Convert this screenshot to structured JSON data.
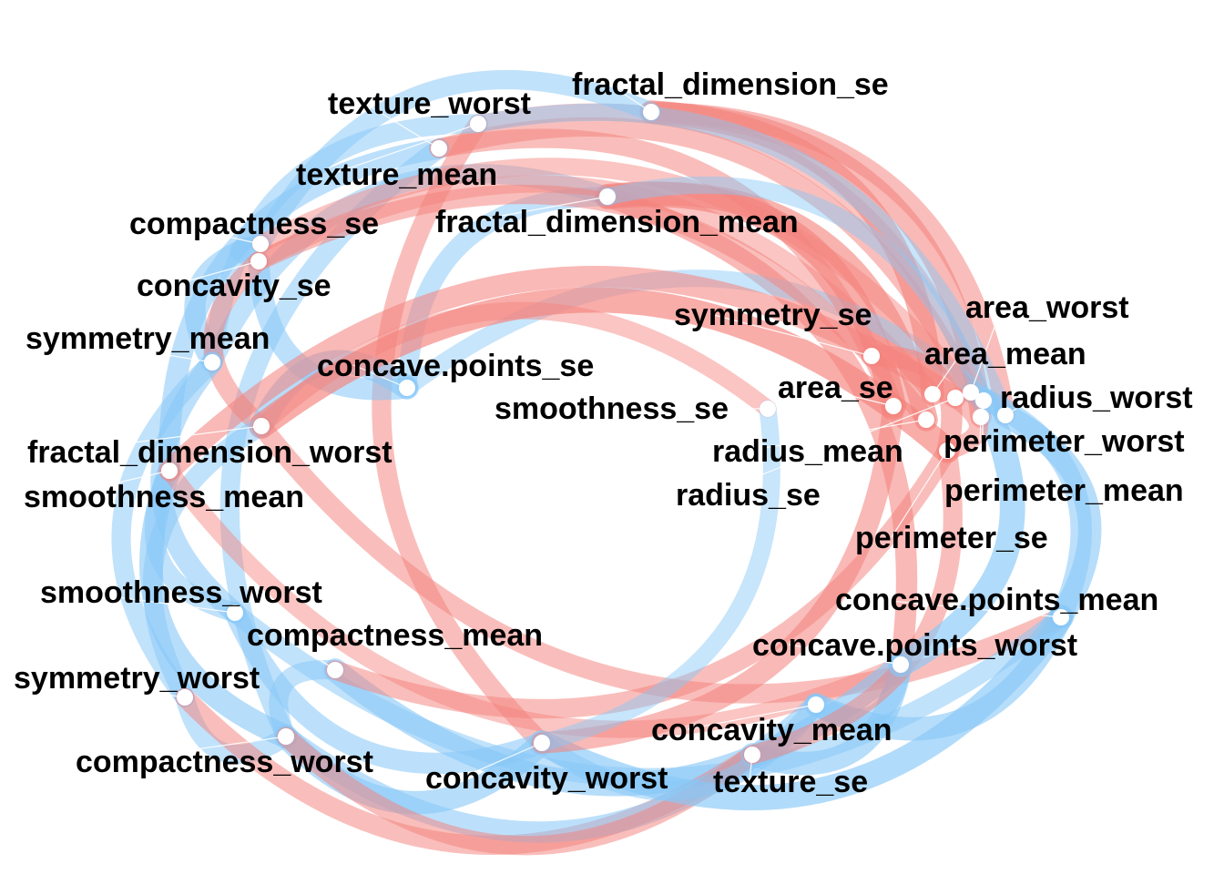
{
  "diagram": {
    "type": "correlation-network",
    "colors": {
      "positive": "#f4837d",
      "negative": "#88c8f7",
      "node": "#ffffff",
      "label": "#000000"
    },
    "nodes": [
      {
        "id": "texture_worst",
        "label": "texture_worst"
      },
      {
        "id": "fractal_dimension_se",
        "label": "fractal_dimension_se"
      },
      {
        "id": "texture_mean",
        "label": "texture_mean"
      },
      {
        "id": "compactness_se",
        "label": "compactness_se"
      },
      {
        "id": "fractal_dimension_mean",
        "label": "fractal_dimension_mean"
      },
      {
        "id": "concavity_se",
        "label": "concavity_se"
      },
      {
        "id": "symmetry_se",
        "label": "symmetry_se"
      },
      {
        "id": "area_worst",
        "label": "area_worst"
      },
      {
        "id": "symmetry_mean",
        "label": "symmetry_mean"
      },
      {
        "id": "area_mean",
        "label": "area_mean"
      },
      {
        "id": "concave.points_se",
        "label": "concave.points_se"
      },
      {
        "id": "area_se",
        "label": "area_se"
      },
      {
        "id": "radius_worst",
        "label": "radius_worst"
      },
      {
        "id": "smoothness_se",
        "label": "smoothness_se"
      },
      {
        "id": "perimeter_worst",
        "label": "perimeter_worst"
      },
      {
        "id": "radius_mean",
        "label": "radius_mean"
      },
      {
        "id": "fractal_dimension_worst",
        "label": "fractal_dimension_worst"
      },
      {
        "id": "smoothness_mean",
        "label": "smoothness_mean"
      },
      {
        "id": "perimeter_mean",
        "label": "perimeter_mean"
      },
      {
        "id": "radius_se",
        "label": "radius_se"
      },
      {
        "id": "perimeter_se",
        "label": "perimeter_se"
      },
      {
        "id": "smoothness_worst",
        "label": "smoothness_worst"
      },
      {
        "id": "concave.points_mean",
        "label": "concave.points_mean"
      },
      {
        "id": "compactness_mean",
        "label": "compactness_mean"
      },
      {
        "id": "concave.points_worst",
        "label": "concave.points_worst"
      },
      {
        "id": "symmetry_worst",
        "label": "symmetry_worst"
      },
      {
        "id": "concavity_mean",
        "label": "concavity_mean"
      },
      {
        "id": "compactness_worst",
        "label": "compactness_worst"
      },
      {
        "id": "concavity_worst",
        "label": "concavity_worst"
      },
      {
        "id": "texture_se",
        "label": "texture_se"
      }
    ],
    "edges": [
      {
        "from": "fractal_dimension_se",
        "to": "area_mean",
        "sign": "positive",
        "strength": 0.8
      },
      {
        "from": "fractal_dimension_se",
        "to": "perimeter_worst",
        "sign": "positive",
        "strength": 0.7
      },
      {
        "from": "fractal_dimension_se",
        "to": "radius_worst",
        "sign": "positive",
        "strength": 0.6
      },
      {
        "from": "fractal_dimension_mean",
        "to": "area_se",
        "sign": "positive",
        "strength": 0.9
      },
      {
        "from": "fractal_dimension_mean",
        "to": "radius_mean",
        "sign": "positive",
        "strength": 0.8
      },
      {
        "from": "fractal_dimension_mean",
        "to": "concave.points_worst",
        "sign": "positive",
        "strength": 0.7
      },
      {
        "from": "fractal_dimension_mean",
        "to": "symmetry_mean",
        "sign": "negative",
        "strength": 0.6
      },
      {
        "from": "fractal_dimension_mean",
        "to": "concave.points_se",
        "sign": "negative",
        "strength": 0.6
      },
      {
        "from": "texture_worst",
        "to": "area_worst",
        "sign": "positive",
        "strength": 0.6
      },
      {
        "from": "texture_worst",
        "to": "smoothness_mean",
        "sign": "negative",
        "strength": 0.7
      },
      {
        "from": "texture_worst",
        "to": "compactness_worst",
        "sign": "negative",
        "strength": 0.6
      },
      {
        "from": "texture_mean",
        "to": "concavity_worst",
        "sign": "positive",
        "strength": 0.6
      },
      {
        "from": "texture_mean",
        "to": "symmetry_mean",
        "sign": "negative",
        "strength": 0.6
      },
      {
        "from": "texture_mean",
        "to": "perimeter_mean",
        "sign": "positive",
        "strength": 0.5
      },
      {
        "from": "compactness_se",
        "to": "symmetry_mean",
        "sign": "negative",
        "strength": 0.7
      },
      {
        "from": "compactness_se",
        "to": "concavity_se",
        "sign": "negative",
        "strength": 0.5
      },
      {
        "from": "compactness_se",
        "to": "fractal_dimension_se",
        "sign": "negative",
        "strength": 0.6
      },
      {
        "from": "concavity_se",
        "to": "concave.points_se",
        "sign": "negative",
        "strength": 0.7
      },
      {
        "from": "concavity_se",
        "to": "fractal_dimension_worst",
        "sign": "positive",
        "strength": 0.6
      },
      {
        "from": "concavity_se",
        "to": "area_mean",
        "sign": "positive",
        "strength": 0.5
      },
      {
        "from": "symmetry_mean",
        "to": "smoothness_worst",
        "sign": "negative",
        "strength": 0.7
      },
      {
        "from": "symmetry_mean",
        "to": "symmetry_worst",
        "sign": "negative",
        "strength": 0.6
      },
      {
        "from": "concave.points_se",
        "to": "fractal_dimension_worst",
        "sign": "negative",
        "strength": 0.8
      },
      {
        "from": "concave.points_se",
        "to": "radius_worst",
        "sign": "negative",
        "strength": 0.5
      },
      {
        "from": "fractal_dimension_worst",
        "to": "perimeter_se",
        "sign": "positive",
        "strength": 0.9
      },
      {
        "from": "fractal_dimension_worst",
        "to": "symmetry_worst",
        "sign": "negative",
        "strength": 0.6
      },
      {
        "from": "fractal_dimension_worst",
        "to": "concave.points_mean",
        "sign": "positive",
        "strength": 0.6
      },
      {
        "from": "smoothness_mean",
        "to": "compactness_worst",
        "sign": "negative",
        "strength": 0.8
      },
      {
        "from": "smoothness_mean",
        "to": "smoothness_worst",
        "sign": "negative",
        "strength": 0.6
      },
      {
        "from": "smoothness_mean",
        "to": "concave.points_worst",
        "sign": "positive",
        "strength": 0.5
      },
      {
        "from": "smoothness_worst",
        "to": "concavity_worst",
        "sign": "negative",
        "strength": 0.7
      },
      {
        "from": "smoothness_worst",
        "to": "concave.points_mean",
        "sign": "negative",
        "strength": 0.6
      },
      {
        "from": "compactness_mean",
        "to": "compactness_worst",
        "sign": "negative",
        "strength": 0.6
      },
      {
        "from": "compactness_mean",
        "to": "concave.points_worst",
        "sign": "negative",
        "strength": 0.8
      },
      {
        "from": "compactness_mean",
        "to": "perimeter_se",
        "sign": "positive",
        "strength": 0.6
      },
      {
        "from": "symmetry_worst",
        "to": "compactness_worst",
        "sign": "negative",
        "strength": 0.6
      },
      {
        "from": "symmetry_worst",
        "to": "texture_se",
        "sign": "positive",
        "strength": 0.6
      },
      {
        "from": "compactness_worst",
        "to": "concavity_worst",
        "sign": "negative",
        "strength": 0.8
      },
      {
        "from": "compactness_worst",
        "to": "concavity_mean",
        "sign": "negative",
        "strength": 0.7
      },
      {
        "from": "compactness_worst",
        "to": "texture_se",
        "sign": "positive",
        "strength": 0.6
      },
      {
        "from": "concavity_worst",
        "to": "concave.points_mean",
        "sign": "negative",
        "strength": 0.9
      },
      {
        "from": "concavity_worst",
        "to": "concavity_mean",
        "sign": "negative",
        "strength": 0.6
      },
      {
        "from": "concavity_worst",
        "to": "area_se",
        "sign": "positive",
        "strength": 0.7
      },
      {
        "from": "concavity_mean",
        "to": "concave.points_mean",
        "sign": "negative",
        "strength": 0.8
      },
      {
        "from": "concavity_mean",
        "to": "concave.points_worst",
        "sign": "negative",
        "strength": 0.7
      },
      {
        "from": "texture_se",
        "to": "concave.points_worst",
        "sign": "negative",
        "strength": 0.8
      },
      {
        "from": "texture_se",
        "to": "perimeter_se",
        "sign": "positive",
        "strength": 0.6
      },
      {
        "from": "concave.points_worst",
        "to": "perimeter_mean",
        "sign": "negative",
        "strength": 0.9
      },
      {
        "from": "concave.points_mean",
        "to": "radius_worst",
        "sign": "negative",
        "strength": 0.8
      },
      {
        "from": "concave.points_mean",
        "to": "area_worst",
        "sign": "negative",
        "strength": 0.7
      },
      {
        "from": "perimeter_se",
        "to": "radius_se",
        "sign": "positive",
        "strength": 0.6
      },
      {
        "from": "perimeter_se",
        "to": "symmetry_se",
        "sign": "positive",
        "strength": 0.7
      },
      {
        "from": "radius_se",
        "to": "smoothness_mean",
        "sign": "positive",
        "strength": 0.7
      },
      {
        "from": "radius_mean",
        "to": "concavity_se",
        "sign": "positive",
        "strength": 0.6
      },
      {
        "from": "smoothness_se",
        "to": "fractal_dimension_worst",
        "sign": "positive",
        "strength": 0.5
      },
      {
        "from": "smoothness_se",
        "to": "concavity_worst",
        "sign": "negative",
        "strength": 0.5
      },
      {
        "from": "area_se",
        "to": "texture_worst",
        "sign": "positive",
        "strength": 0.6
      },
      {
        "from": "area_worst",
        "to": "compactness_se",
        "sign": "positive",
        "strength": 0.5
      },
      {
        "from": "radius_worst",
        "to": "texture_mean",
        "sign": "negative",
        "strength": 0.5
      },
      {
        "from": "perimeter_mean",
        "to": "fractal_dimension_mean",
        "sign": "negative",
        "strength": 0.5
      }
    ]
  }
}
